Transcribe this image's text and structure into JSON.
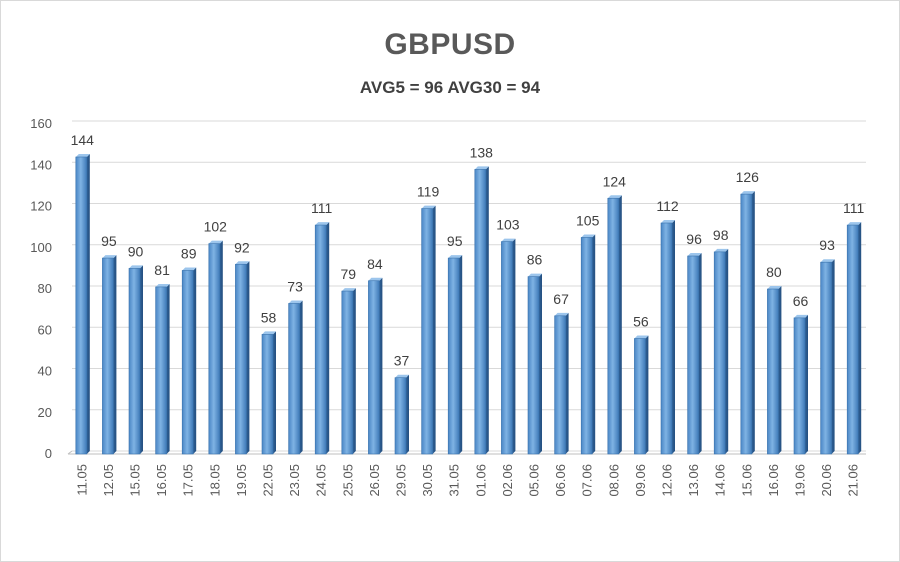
{
  "chart_data": {
    "type": "bar",
    "title": "GBPUSD",
    "subtitle": "AVG5 = 96 AVG30 = 94",
    "xlabel": "",
    "ylabel": "",
    "ylim": [
      0,
      160
    ],
    "yticks": [
      0,
      20,
      40,
      60,
      80,
      100,
      120,
      140,
      160
    ],
    "grid": true,
    "categories": [
      "11.05",
      "12.05",
      "15.05",
      "16.05",
      "17.05",
      "18.05",
      "19.05",
      "22.05",
      "23.05",
      "24.05",
      "25.05",
      "26.05",
      "29.05",
      "30.05",
      "31.05",
      "01.06",
      "02.06",
      "05.06",
      "06.06",
      "07.06",
      "08.06",
      "09.06",
      "12.06",
      "13.06",
      "14.06",
      "15.06",
      "16.06",
      "19.06",
      "20.06",
      "21.06"
    ],
    "values": [
      144,
      95,
      90,
      81,
      89,
      102,
      92,
      58,
      73,
      111,
      79,
      84,
      37,
      119,
      95,
      138,
      103,
      86,
      67,
      105,
      124,
      56,
      112,
      96,
      98,
      126,
      80,
      66,
      93,
      111
    ],
    "bar_color": "#5b9bd5"
  }
}
